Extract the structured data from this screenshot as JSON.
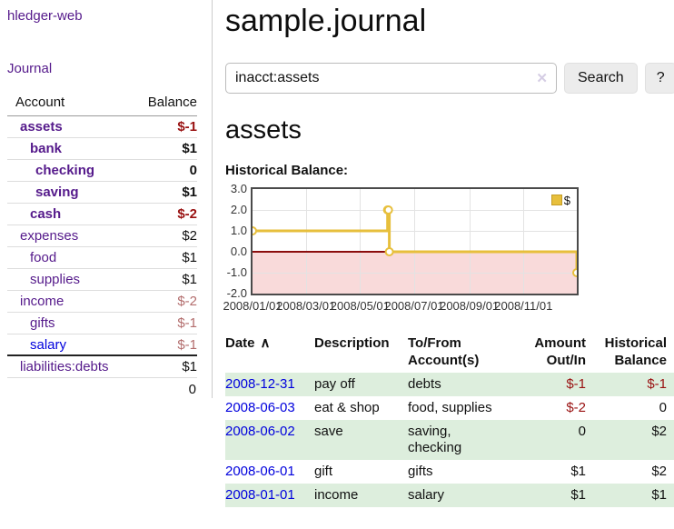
{
  "app": {
    "title": "hledger-web"
  },
  "colors": {
    "link_purple": "#551a8b",
    "link_blue": "#0000dd",
    "negative_strong": "#991111",
    "negative_soft": "#b36d6d",
    "row_shade_green": "#ddeedd",
    "chart_gold": "#e7bf3c",
    "chart_negative_fill": "#f9dada",
    "chart_zero_line": "#8c0d0d"
  },
  "sidebar": {
    "journal_link": "Journal",
    "accounts": {
      "headers": {
        "account": "Account",
        "balance": "Balance"
      },
      "rows": [
        {
          "label": "assets",
          "balance": "$-1",
          "level": 1,
          "bold": true,
          "neg": "strong",
          "link": "purple"
        },
        {
          "label": "bank",
          "balance": "$1",
          "level": 2,
          "bold": true,
          "neg": null,
          "link": "purple"
        },
        {
          "label": "checking",
          "balance": "0",
          "level": 3,
          "bold": true,
          "neg": null,
          "link": "purple"
        },
        {
          "label": "saving",
          "balance": "$1",
          "level": 3,
          "bold": true,
          "neg": null,
          "link": "purple"
        },
        {
          "label": "cash",
          "balance": "$-2",
          "level": 2,
          "bold": true,
          "neg": "strong",
          "link": "purple"
        },
        {
          "label": "expenses",
          "balance": "$2",
          "level": 1,
          "bold": false,
          "neg": null,
          "link": "purple"
        },
        {
          "label": "food",
          "balance": "$1",
          "level": 2,
          "bold": false,
          "neg": null,
          "link": "purple"
        },
        {
          "label": "supplies",
          "balance": "$1",
          "level": 2,
          "bold": false,
          "neg": null,
          "link": "purple"
        },
        {
          "label": "income",
          "balance": "$-2",
          "level": 1,
          "bold": false,
          "neg": "soft",
          "link": "purple"
        },
        {
          "label": "gifts",
          "balance": "$-1",
          "level": 2,
          "bold": false,
          "neg": "soft",
          "link": "purple"
        },
        {
          "label": "salary",
          "balance": "$-1",
          "level": 2,
          "bold": false,
          "neg": "soft",
          "link": "blue"
        },
        {
          "label": "liabilities:debts",
          "balance": "$1",
          "level": 1,
          "bold": false,
          "neg": null,
          "link": "purple"
        }
      ],
      "total": "0"
    }
  },
  "main": {
    "title": "sample.journal",
    "search": {
      "value": "inacct:assets",
      "clear_icon": "✕",
      "button_label": "Search",
      "help_label": "?"
    },
    "account_heading": "assets",
    "chart_section_label": "Historical Balance:"
  },
  "chart_data": {
    "type": "line",
    "style": "step",
    "title": "Historical Balance:",
    "series": [
      {
        "name": "$",
        "color": "#e7bf3c",
        "points": [
          [
            "2008-01-01",
            1
          ],
          [
            "2008-06-01",
            2
          ],
          [
            "2008-06-02",
            2
          ],
          [
            "2008-06-03",
            0
          ],
          [
            "2008-12-31",
            -1
          ]
        ]
      }
    ],
    "x_range": [
      "2008-01-01",
      "2008-12-31"
    ],
    "ylim": [
      -2.0,
      3.0
    ],
    "y_ticks": [
      "3.0",
      "2.0",
      "1.0",
      "0.0",
      "-1.0",
      "-2.0"
    ],
    "x_ticks": [
      {
        "label": "2008/01/01",
        "date": "2008-01-01"
      },
      {
        "label": "2008/03/01",
        "date": "2008-03-01"
      },
      {
        "label": "2008/05/01",
        "date": "2008-05-01"
      },
      {
        "label": "2008/07/01",
        "date": "2008-07-01"
      },
      {
        "label": "2008/09/01",
        "date": "2008-09-01"
      },
      {
        "label": "2008/11/01",
        "date": "2008-11-01"
      }
    ],
    "legend": {
      "label": "$",
      "position": "top-right"
    },
    "grid": true,
    "negative_region_shaded": true
  },
  "register": {
    "headers": [
      "Date",
      "Description",
      "To/From Account(s)",
      "Amount Out/In",
      "Historical Balance"
    ],
    "sort_icon": "∧",
    "rows": [
      {
        "date": "2008-12-31",
        "description": "pay off",
        "accounts": "debts",
        "amount": "$-1",
        "balance": "$-1",
        "amount_neg": true,
        "balance_neg": true,
        "shaded": true
      },
      {
        "date": "2008-06-03",
        "description": "eat & shop",
        "accounts": "food, supplies",
        "amount": "$-2",
        "balance": "0",
        "amount_neg": true,
        "balance_neg": false,
        "shaded": false
      },
      {
        "date": "2008-06-02",
        "description": "save",
        "accounts": "saving, checking",
        "amount": "0",
        "balance": "$2",
        "amount_neg": false,
        "balance_neg": false,
        "shaded": true
      },
      {
        "date": "2008-06-01",
        "description": "gift",
        "accounts": "gifts",
        "amount": "$1",
        "balance": "$2",
        "amount_neg": false,
        "balance_neg": false,
        "shaded": false
      },
      {
        "date": "2008-01-01",
        "description": "income",
        "accounts": "salary",
        "amount": "$1",
        "balance": "$1",
        "amount_neg": false,
        "balance_neg": false,
        "shaded": true
      }
    ]
  }
}
